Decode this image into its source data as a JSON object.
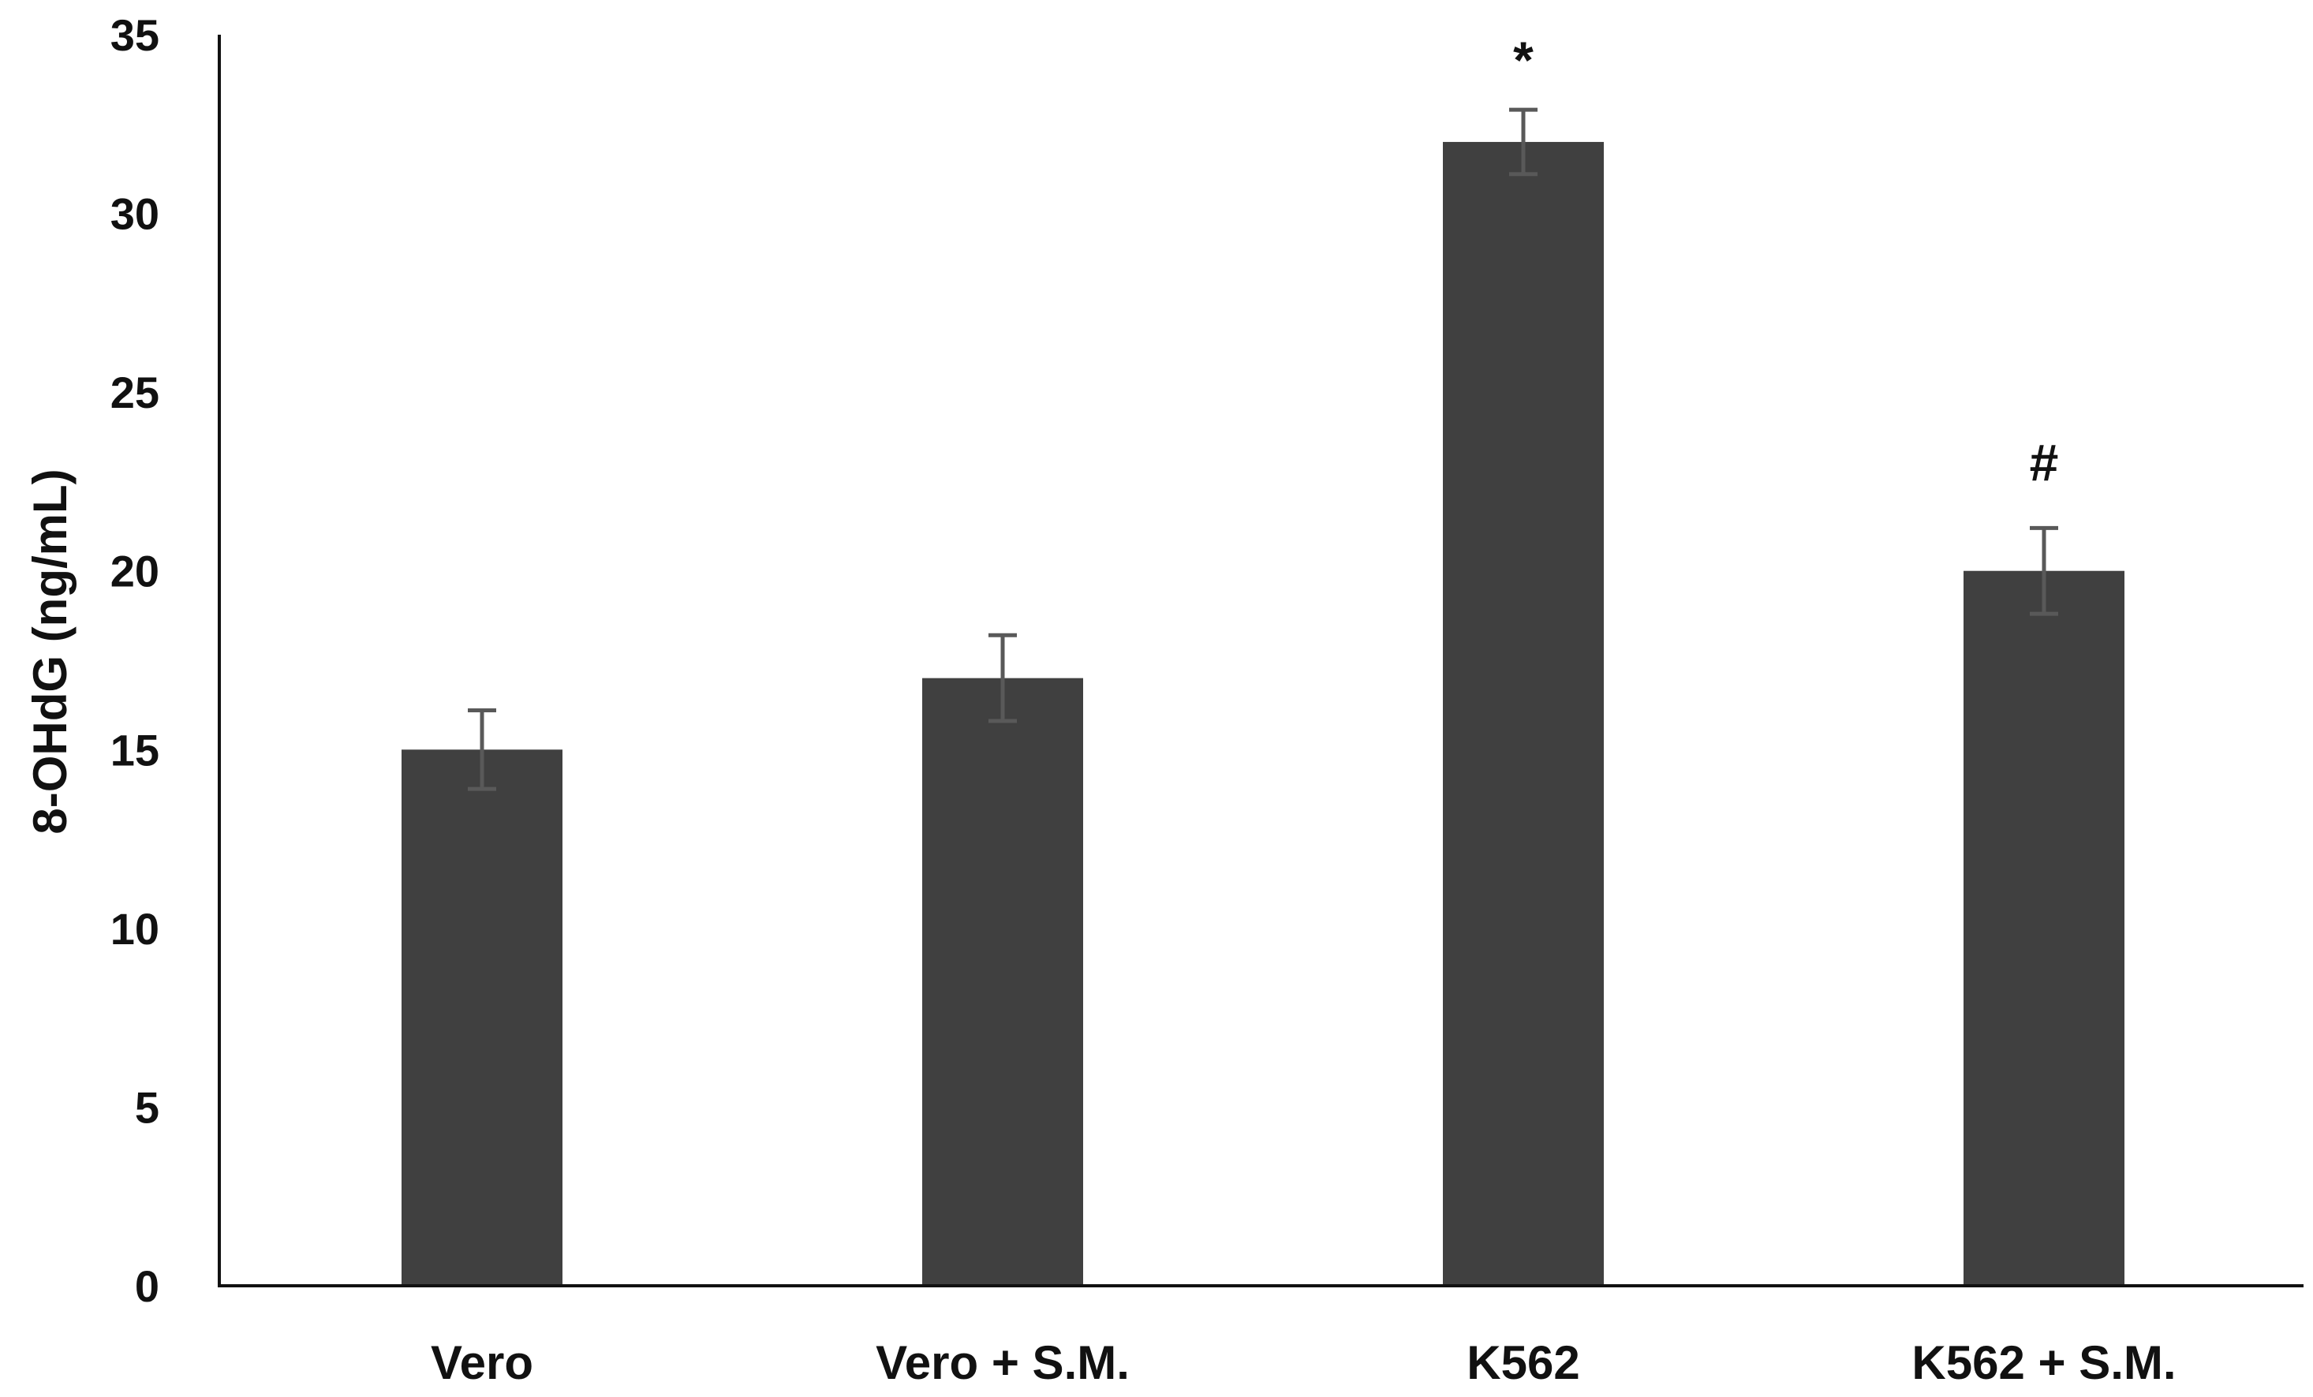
{
  "chart_data": {
    "type": "bar",
    "title": "",
    "xlabel": "",
    "ylabel": "8-OHdG (ng/mL)",
    "ylim": [
      0,
      35
    ],
    "yticks": [
      0,
      5,
      10,
      15,
      20,
      25,
      30,
      35
    ],
    "grid": false,
    "legend": "none",
    "categories": [
      "Vero",
      "Vero + S.M.",
      "K562",
      "K562 + S.M."
    ],
    "values": [
      15,
      17,
      32,
      20
    ],
    "errors": [
      1.1,
      1.2,
      0.9,
      1.2
    ],
    "annotations": [
      "",
      "",
      "*",
      "#"
    ],
    "colors": {
      "bar": "#404040",
      "error_bar": "#595959",
      "axis": "#111111"
    }
  }
}
